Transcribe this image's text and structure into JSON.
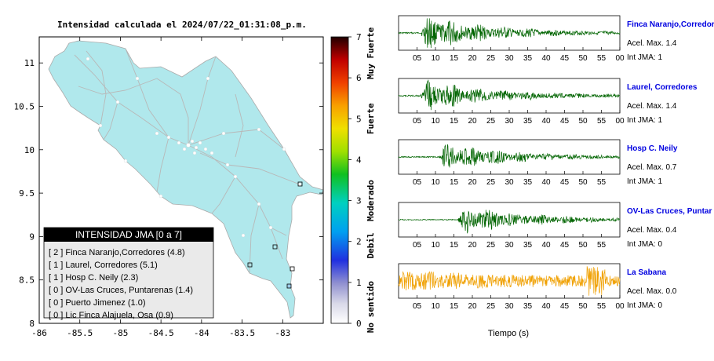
{
  "map": {
    "title": "Intensidad calculada el 2024/07/22_01:31:08_p.m.",
    "x_ticks": [
      "-86",
      "-85.5",
      "-85",
      "-84.5",
      "-84",
      "-83.5",
      "-83"
    ],
    "y_ticks": [
      "11",
      "10.5",
      "10",
      "9.5",
      "9",
      "8.5",
      "8"
    ],
    "x_range": [
      -86,
      -82.5
    ],
    "y_range": [
      8,
      11.3
    ],
    "land_color": "#b0e8ec",
    "legend": {
      "title": "INTENSIDAD JMA [0 a 7]",
      "items": [
        "[ 2 ]  Finca Naranjo,Corredores (4.8)",
        "[ 1 ]  Laurel, Corredores (5.1)",
        "[ 1 ]  Hosp C. Neily (2.3)",
        "[ 0 ]  OV-Las Cruces, Puntarenas (1.4)",
        "[ 0 ]  Puerto Jimenez (1.0)",
        "[ 0 ]  Lic Finca Alajuela, Osa (0.9)"
      ]
    }
  },
  "colorbar": {
    "ticks": [
      "7",
      "6",
      "5",
      "4",
      "3",
      "2",
      "1",
      "0"
    ],
    "labels": [
      "Muy Fuerte",
      "Fuerte",
      "Moderado",
      "Debil",
      "No sentido"
    ],
    "range": [
      0,
      7
    ]
  },
  "seismograms": {
    "x_label": "Tiempo (s)",
    "traces": [
      {
        "name": "Finca Naranjo,Corredor",
        "accel": "Acel. Max. 1.4",
        "int": "Int JMA: 1",
        "color": "#006400",
        "ticks": [
          "05",
          "10",
          "15",
          "20",
          "25",
          "30",
          "35",
          "40",
          "45",
          "50",
          "55",
          "00"
        ],
        "onset": 6,
        "peak": 1.0,
        "noise": 0.05
      },
      {
        "name": "Laurel, Corredores",
        "accel": "Acel. Max. 1.4",
        "int": "Int JMA: 1",
        "color": "#006400",
        "ticks": [
          "05",
          "10",
          "15",
          "20",
          "25",
          "30",
          "35",
          "40",
          "45",
          "50",
          "55",
          "00"
        ],
        "onset": 6,
        "peak": 0.9,
        "noise": 0.05
      },
      {
        "name": "Hosp C. Neily",
        "accel": "Acel. Max. 0.7",
        "int": "Int JMA: 1",
        "color": "#006400",
        "ticks": [
          "05",
          "10",
          "15",
          "20",
          "25",
          "30",
          "35",
          "40",
          "45",
          "50",
          "55"
        ],
        "onset": 11,
        "peak": 0.8,
        "noise": 0.04
      },
      {
        "name": "OV-Las Cruces, Puntar",
        "accel": "Acel. Max. 0.4",
        "int": "Int JMA: 0",
        "color": "#006400",
        "ticks": [
          "05",
          "10",
          "15",
          "20",
          "25",
          "30",
          "35",
          "40",
          "45",
          "50",
          "55"
        ],
        "onset": 16,
        "peak": 0.85,
        "noise": 0.03
      },
      {
        "name": "La Sabana",
        "accel": "Acel. Max. 0.0",
        "int": "Int JMA: 0",
        "color": "#f0a000",
        "ticks": [
          "05",
          "10",
          "15",
          "20",
          "25",
          "30",
          "35",
          "40",
          "45",
          "50",
          "55",
          "00"
        ],
        "onset": 0,
        "peak": 0.4,
        "noise": 0.35
      }
    ]
  }
}
